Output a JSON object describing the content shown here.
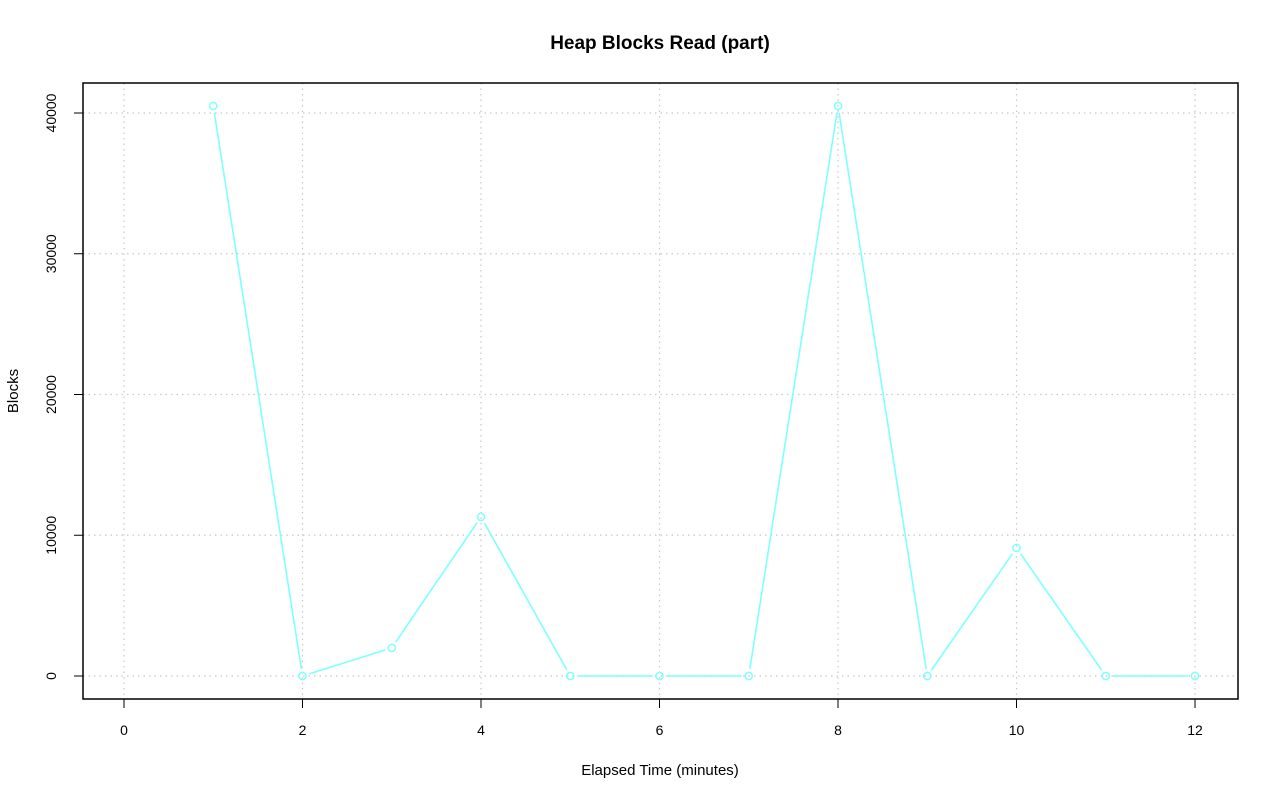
{
  "chart_data": {
    "type": "line",
    "title": "Heap Blocks Read (part)",
    "xlabel": "Elapsed Time (minutes)",
    "ylabel": "Blocks",
    "xlim": [
      0,
      12
    ],
    "ylim": [
      0,
      40000
    ],
    "x_ticks": [
      0,
      2,
      4,
      6,
      8,
      10,
      12
    ],
    "y_ticks": [
      0,
      10000,
      20000,
      30000,
      40000
    ],
    "grid": true,
    "series": [
      {
        "color": "#7fffff",
        "marker": "circle",
        "x": [
          1,
          2,
          3,
          4,
          5,
          6,
          7,
          8,
          9,
          10,
          11,
          12
        ],
        "y": [
          40500,
          0,
          2000,
          11300,
          0,
          0,
          0,
          40500,
          0,
          9100,
          0,
          0
        ]
      }
    ]
  }
}
